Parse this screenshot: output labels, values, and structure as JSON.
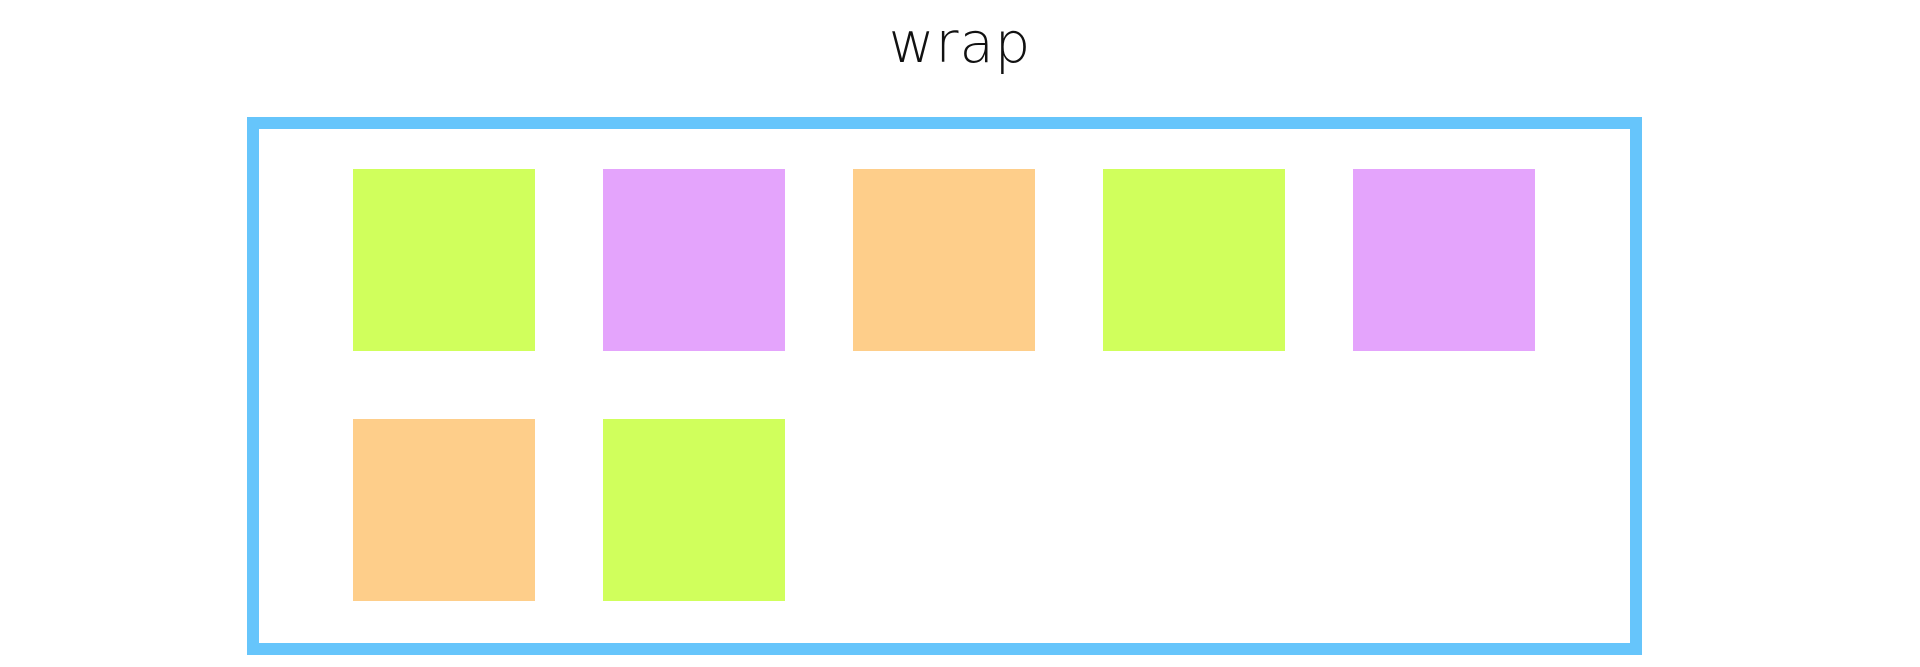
{
  "title": "wrap",
  "colors": {
    "container_border": "#66c5fb",
    "green": "#d0ff5c",
    "purple": "#e4a4fc",
    "orange": "#fece8a"
  },
  "items": [
    {
      "color": "#d0ff5c"
    },
    {
      "color": "#e4a4fc"
    },
    {
      "color": "#fece8a"
    },
    {
      "color": "#d0ff5c"
    },
    {
      "color": "#e4a4fc"
    },
    {
      "color": "#fece8a"
    },
    {
      "color": "#d0ff5c"
    }
  ]
}
